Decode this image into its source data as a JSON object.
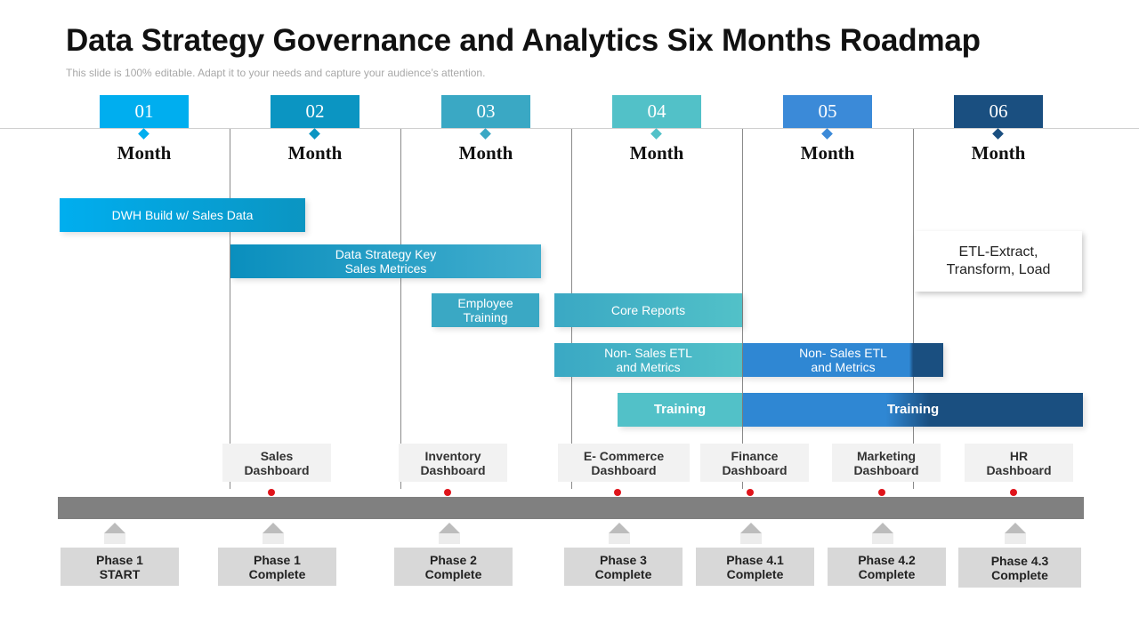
{
  "header": {
    "title": "Data Strategy Governance and Analytics Six Months Roadmap",
    "subtitle": "This slide is 100% editable. Adapt it to your needs and capture your audience’s attention."
  },
  "months": [
    {
      "number": "01",
      "label": "Month",
      "color": "#00aeef"
    },
    {
      "number": "02",
      "label": "Month",
      "color": "#0b95c2"
    },
    {
      "number": "03",
      "label": "Month",
      "color": "#3aa8c4"
    },
    {
      "number": "04",
      "label": "Month",
      "color": "#52c1c8"
    },
    {
      "number": "05",
      "label": "Month",
      "color": "#3b8ad8"
    },
    {
      "number": "06",
      "label": "Month",
      "color": "#1a4f80"
    }
  ],
  "tasks": [
    {
      "label": "DWH Build w/ Sales Data",
      "color": "#0e9fd6"
    },
    {
      "label": "Data Strategy Key\nSales Metrices",
      "color": "#169cc6"
    },
    {
      "label": "Employee\nTraining",
      "color": "#3aa8c4"
    },
    {
      "label": "Core Reports",
      "color": "#52c1c8"
    },
    {
      "label": "Non- Sales ETL\nand Metrics",
      "color": "#52c1c8"
    },
    {
      "label": "Non- Sales ETL\nand Metrics",
      "color": "#2f87d3"
    },
    {
      "label": "Training",
      "color": "#52c1c8"
    },
    {
      "label": "Training",
      "color": "#2f87d3"
    }
  ],
  "note": {
    "text": "ETL-Extract,\nTransform,  Load"
  },
  "dashboards": [
    "Sales\nDashboard",
    "Inventory\nDashboard",
    "E- Commerce\nDashboard",
    "Finance\nDashboard",
    "Marketing\nDashboard",
    "HR\nDashboard"
  ],
  "phases": [
    "Phase 1\nSTART",
    "Phase 1\nComplete",
    "Phase 2\nComplete",
    "Phase 3\nComplete",
    "Phase 4.1\nComplete",
    "Phase 4.2\nComplete",
    "Phase 4.3\nComplete"
  ],
  "colors": {
    "bar_dark_end": "#1a4f80",
    "milestone_dot": "#e0141b",
    "timeline_axis": "#808080"
  }
}
